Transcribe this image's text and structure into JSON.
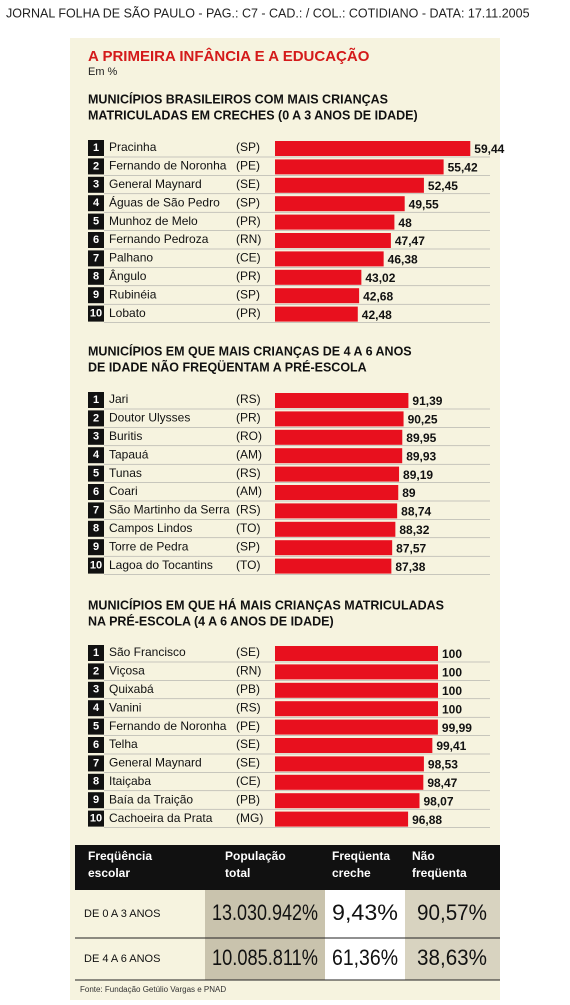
{
  "header": {
    "strip": "JORNAL FOLHA DE SÃO PAULO - PAG.: C7 - CAD.: / COL.: COTIDIANO - DATA: 17.11.2005",
    "title": "A PRIMEIRA INFÂNCIA E A EDUCAÇÃO",
    "unit": "Em %"
  },
  "chart_data": [
    {
      "type": "bar",
      "orientation": "horizontal",
      "title": [
        "MUNICÍPIOS BRASILEIROS COM MAIS CRIANÇAS",
        "MATRICULADAS EM CRECHES (0 A 3 ANOS DE IDADE)"
      ],
      "ranks": [
        1,
        2,
        3,
        4,
        5,
        6,
        7,
        8,
        9,
        10
      ],
      "categories": [
        "Pracinha",
        "Fernando de Noronha",
        "General Maynard",
        "Águas de São Pedro",
        "Munhoz de Melo",
        "Fernando Pedroza",
        "Palhano",
        "Ângulo",
        "Rubinéia",
        "Lobato"
      ],
      "regions": [
        "(SP)",
        "(PE)",
        "(SE)",
        "(SP)",
        "(PR)",
        "(RN)",
        "(CE)",
        "(PR)",
        "(SP)",
        "(PR)"
      ],
      "values": [
        59.44,
        55.42,
        52.45,
        49.55,
        48,
        47.47,
        46.38,
        43.02,
        42.68,
        42.48
      ],
      "value_labels": [
        "59,44",
        "55,42",
        "52,45",
        "49,55",
        "48",
        "47,47",
        "46,38",
        "43,02",
        "42,68",
        "42,48"
      ],
      "xlim": [
        30,
        60
      ],
      "color": "#e8101e"
    },
    {
      "type": "bar",
      "orientation": "horizontal",
      "title": [
        "MUNICÍPIOS EM QUE MAIS CRIANÇAS DE 4 A 6 ANOS",
        "DE IDADE NÃO FREQÜENTAM A PRÉ-ESCOLA"
      ],
      "ranks": [
        1,
        2,
        3,
        4,
        5,
        6,
        7,
        8,
        9,
        10
      ],
      "categories": [
        "Jari",
        "Doutor Ulysses",
        "Buritis",
        "Tapauá",
        "Tunas",
        "Coari",
        "São Martinho da Serra",
        "Campos Lindos",
        "Torre de Pedra",
        "Lagoa do Tocantins"
      ],
      "regions": [
        "(RS)",
        "(PR)",
        "(RO)",
        "(AM)",
        "(RS)",
        "(AM)",
        "(RS)",
        "(TO)",
        "(SP)",
        "(TO)"
      ],
      "values": [
        91.39,
        90.25,
        89.95,
        89.93,
        89.19,
        89,
        88.74,
        88.32,
        87.57,
        87.38
      ],
      "value_labels": [
        "91,39",
        "90,25",
        "89,95",
        "89,93",
        "89,19",
        "89",
        "88,74",
        "88,32",
        "87,57",
        "87,38"
      ],
      "xlim": [
        60,
        92
      ],
      "color": "#e8101e"
    },
    {
      "type": "bar",
      "orientation": "horizontal",
      "title": [
        "MUNICÍPIOS EM QUE HÁ MAIS CRIANÇAS MATRICULADAS",
        "NA PRÉ-ESCOLA (4 A 6 ANOS DE IDADE)"
      ],
      "ranks": [
        1,
        2,
        3,
        4,
        5,
        6,
        7,
        8,
        9,
        10
      ],
      "categories": [
        "São Francisco",
        "Viçosa",
        "Quixabá",
        "Vanini",
        "Fernando de Noronha",
        "Telha",
        "General Maynard",
        "Itaiçaba",
        "Baía da Traição",
        "Cachoeira da Prata"
      ],
      "regions": [
        "(SE)",
        "(RN)",
        "(PB)",
        "(RS)",
        "(PE)",
        "(SE)",
        "(SE)",
        "(CE)",
        "(PB)",
        "(MG)"
      ],
      "values": [
        100,
        100,
        100,
        100,
        99.99,
        99.41,
        98.53,
        98.47,
        98.07,
        96.88
      ],
      "value_labels": [
        "100",
        "100",
        "100",
        "100",
        "99,99",
        "99,41",
        "98,53",
        "98,47",
        "98,07",
        "96,88"
      ],
      "xlim": [
        83,
        100
      ],
      "color": "#e8101e"
    }
  ],
  "table": {
    "header": [
      [
        "Freqüência",
        "escolar"
      ],
      [
        "População",
        "total"
      ],
      [
        "Freqüenta",
        "creche"
      ],
      [
        "Não",
        "freqüenta"
      ]
    ],
    "rows": [
      [
        "DE 0 A 3 ANOS",
        "13.030.942%",
        "9,43%",
        "90,57%"
      ],
      [
        "DE 4 A 6 ANOS",
        "10.085.811%",
        "61,36%",
        "38,63%"
      ]
    ]
  },
  "source": "Fonte: Fundação Getúlio Vargas e PNAD"
}
